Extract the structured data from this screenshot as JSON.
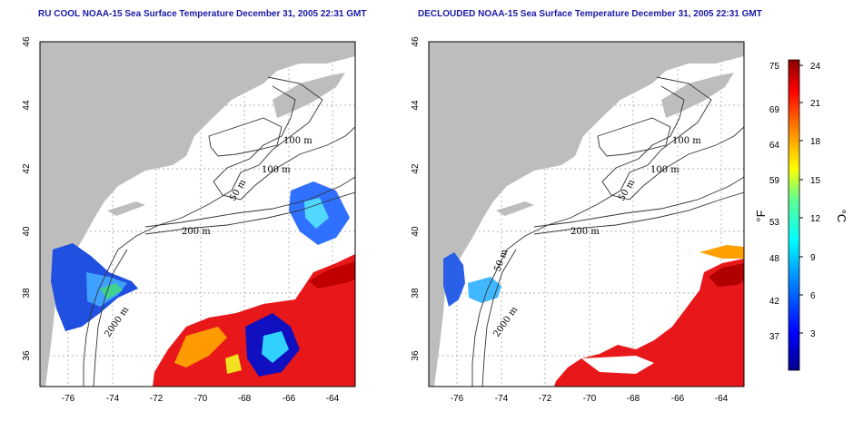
{
  "panels": [
    {
      "title": "RU COOL NOAA-15 Sea Surface Temperature December 31, 2005 22:31 GMT",
      "x_ticks": [
        "-76",
        "-74",
        "-72",
        "-70",
        "-68",
        "-66",
        "-64"
      ],
      "y_ticks": [
        "46",
        "44",
        "42",
        "40",
        "38",
        "36"
      ],
      "contour_labels": [
        "100 m",
        "100 m",
        "50 m",
        "200 m",
        "2000 m"
      ]
    },
    {
      "title": "DECLOUDED NOAA-15 Sea Surface Temperature December 31, 2005 22:31 GMT",
      "x_ticks": [
        "-76",
        "-74",
        "-72",
        "-70",
        "-68",
        "-66",
        "-64"
      ],
      "y_ticks": [
        "46",
        "44",
        "42",
        "40",
        "38",
        "36"
      ],
      "contour_labels": [
        "100 m",
        "100 m",
        "50 m",
        "200 m",
        "50 m",
        "2000 m"
      ]
    }
  ],
  "colorbar": {
    "fahrenheit_label": "°F",
    "celsius_label": "°C",
    "fahrenheit_ticks": [
      "75",
      "69",
      "64",
      "59",
      "53",
      "48",
      "42",
      "37"
    ],
    "celsius_ticks": [
      "24",
      "21",
      "18",
      "15",
      "12",
      "9",
      "6",
      "3"
    ],
    "colors": [
      "#000080",
      "#0000ff",
      "#0080ff",
      "#00ffff",
      "#80ff80",
      "#ffff00",
      "#ff8000",
      "#ff0000",
      "#800000"
    ]
  },
  "colors": {
    "land": "#bdbdbd",
    "grid": "#999999",
    "title": "#1a1aa6"
  }
}
